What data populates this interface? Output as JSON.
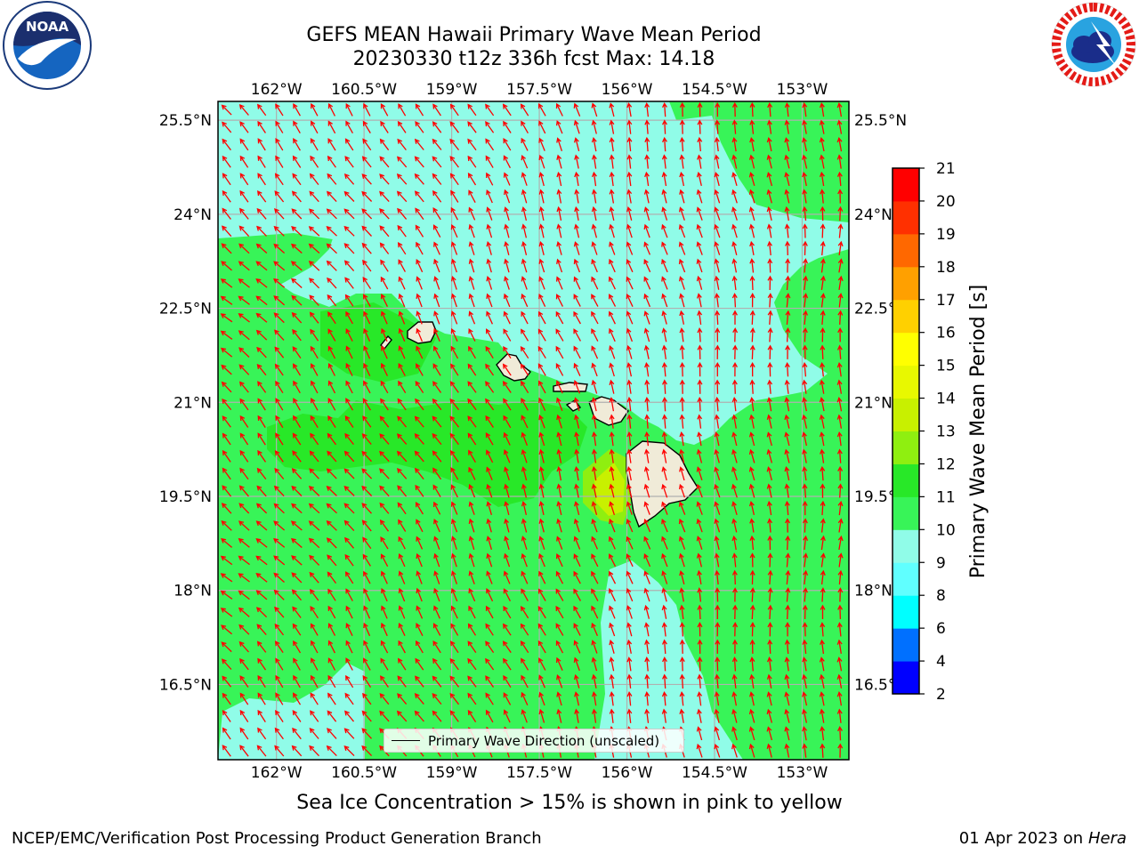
{
  "header": {
    "title_line1": "GEFS MEAN Hawaii Primary Wave Mean Period",
    "title_line2": "20230330 t12z 336h fcst   Max: 14.18"
  },
  "logos": {
    "noaa": {
      "text": "NOAA",
      "ring_text": "NATIONAL OCEANIC AND ATMOSPHERIC ADMINISTRATION · U.S. DEPARTMENT OF COMMERCE"
    },
    "nws": {
      "ring_text": "NATIONAL WEATHER SERVICE"
    }
  },
  "map": {
    "lon_range": [
      -163.0,
      -152.2
    ],
    "lat_range": [
      15.3,
      25.8
    ],
    "lon_ticks": [
      "162°W",
      "160.5°W",
      "159°W",
      "157.5°W",
      "156°W",
      "154.5°W",
      "153°W"
    ],
    "lon_tick_values": [
      -162.0,
      -160.5,
      -159.0,
      -157.5,
      -156.0,
      -154.5,
      -153.0
    ],
    "lat_ticks": [
      "25.5°N",
      "24°N",
      "22.5°N",
      "21°N",
      "19.5°N",
      "18°N",
      "16.5°N"
    ],
    "lat_tick_values": [
      25.5,
      24.0,
      22.5,
      21.0,
      19.5,
      18.0,
      16.5
    ],
    "grid": true,
    "legend": {
      "label": "Primary Wave Direction (unscaled)",
      "placement": "bottom-center"
    },
    "colors": {
      "period_9_10": "#90fce8",
      "period_10_11": "#38f458",
      "period_11_12": "#28e828",
      "period_12_13": "#8fef10",
      "period_13_14": "#c8f000",
      "arrow": "#ff0000",
      "land": "#f0ebd8"
    }
  },
  "colorbar": {
    "label": "Primary Wave Mean Period [s]",
    "levels": [
      2,
      4,
      6,
      8,
      9,
      10,
      11,
      12,
      13,
      14,
      15,
      16,
      17,
      18,
      19,
      20,
      21
    ],
    "colors": [
      "#0000ff",
      "#0070ff",
      "#00ffff",
      "#60ffff",
      "#90fce8",
      "#38f458",
      "#28e828",
      "#8fef10",
      "#c8f000",
      "#e8f800",
      "#ffff00",
      "#ffd000",
      "#ffa000",
      "#ff6800",
      "#ff3000",
      "#ff0000"
    ]
  },
  "footer": {
    "note": "Sea Ice Concentration > 15% is shown in pink to yellow",
    "left": "NCEP/EMC/Verification Post Processing Product Generation Branch",
    "right_date": "01 Apr 2023 on",
    "right_host": "Hera"
  }
}
